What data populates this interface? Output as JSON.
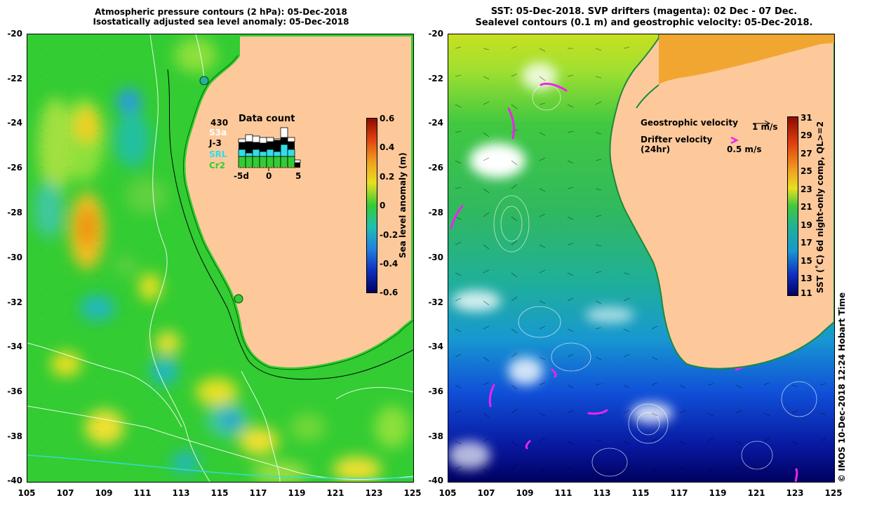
{
  "left": {
    "title_line1": "Atmospheric pressure contours (2 hPa): 05-Dec-2018",
    "title_line2": "Isostatically adjusted sea level anomaly: 05-Dec-2018",
    "colorbar_label": "Sea level anomaly (m)",
    "colorbar_ticks": [
      "0.6",
      "0.4",
      "0.2",
      "0",
      "-0.2",
      "-0.4",
      "-0.6"
    ],
    "data_count": {
      "title": "Data count",
      "total": "430",
      "missions": [
        {
          "label": "S3a",
          "color": "#ffffff"
        },
        {
          "label": "J-3",
          "color": "#000000"
        },
        {
          "label": "SRL",
          "color": "#33dde6"
        },
        {
          "label": "Cr2",
          "color": "#33cc33"
        }
      ],
      "axis_ticks": [
        "-5d",
        "0",
        "5"
      ]
    }
  },
  "right": {
    "title_line1": "SST: 05-Dec-2018. SVP drifters (magenta): 02 Dec - 07 Dec.",
    "title_line2": "Sealevel contours (0.1 m) and geostrophic velocity: 05-Dec-2018.",
    "colorbar_label": "SST (˚C) 6d night-only comp, QL>=2",
    "colorbar_ticks": [
      "31",
      "29",
      "27",
      "25",
      "23",
      "21",
      "19",
      "17",
      "15",
      "13",
      "11"
    ],
    "legend": {
      "geo_label": "Geostrophic velocity",
      "geo_scale": "1 m/s",
      "drifter_label": "Drifter velocity",
      "drifter_sub": "(24hr)",
      "drifter_scale": "0.5 m/s"
    },
    "credit": "© IMOS 10-Dec-2018 12:24 Hobart Time"
  },
  "y_ticks": [
    "-20",
    "-22",
    "-24",
    "-26",
    "-28",
    "-30",
    "-32",
    "-34",
    "-36",
    "-38",
    "-40"
  ],
  "x_ticks": [
    "105",
    "107",
    "109",
    "111",
    "113",
    "115",
    "117",
    "119",
    "121",
    "123",
    "125"
  ],
  "colors": {
    "land": "#fdc99b",
    "sla_zero": "#33cc33",
    "accent_drifter": "#ee22ee"
  }
}
